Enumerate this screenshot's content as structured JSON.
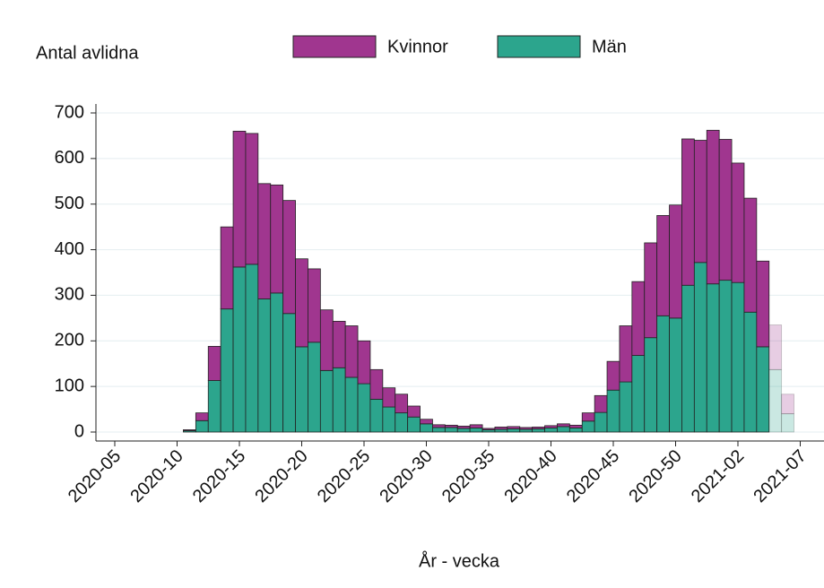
{
  "chart_data": {
    "type": "stacked_bar",
    "y_label": "Antal avlidna",
    "x_label": "År - vecka",
    "categories": [
      "2020-05",
      null,
      null,
      null,
      null,
      "2020-10",
      null,
      null,
      null,
      null,
      "2020-15",
      null,
      null,
      null,
      null,
      "2020-20",
      null,
      null,
      null,
      null,
      "2020-25",
      null,
      null,
      null,
      null,
      "2020-30",
      null,
      null,
      null,
      null,
      "2020-35",
      null,
      null,
      null,
      null,
      "2020-40",
      null,
      null,
      null,
      null,
      "2020-45",
      null,
      null,
      null,
      null,
      "2020-50",
      null,
      null,
      null,
      null,
      "2021-02",
      null,
      null,
      null,
      null,
      "2021-07"
    ],
    "series": [
      {
        "name": "Män",
        "color": "#2ca58d",
        "values": [
          null,
          null,
          null,
          null,
          null,
          null,
          3,
          25,
          113,
          270,
          362,
          368,
          292,
          305,
          260,
          187,
          197,
          135,
          141,
          120,
          106,
          72,
          55,
          42,
          33,
          18,
          10,
          10,
          8,
          9,
          5,
          6,
          7,
          6,
          7,
          9,
          12,
          9,
          24,
          43,
          92,
          110,
          168,
          207,
          255,
          250,
          322,
          372,
          325,
          333,
          328,
          263,
          187,
          137,
          40,
          null
        ]
      },
      {
        "name": "Kvinnor",
        "color": "#a0368f",
        "values": [
          null,
          null,
          null,
          null,
          null,
          null,
          2,
          17,
          75,
          180,
          298,
          287,
          253,
          237,
          248,
          193,
          161,
          133,
          102,
          113,
          94,
          65,
          42,
          41,
          24,
          10,
          6,
          5,
          5,
          7,
          3,
          5,
          5,
          4,
          4,
          5,
          6,
          6,
          18,
          37,
          63,
          123,
          162,
          208,
          220,
          248,
          321,
          268,
          337,
          309,
          262,
          250,
          188,
          98,
          43,
          null
        ]
      }
    ],
    "faded_last_n": 2,
    "ylim": [
      0,
      700
    ],
    "yticks": [
      0,
      100,
      200,
      300,
      400,
      500,
      600,
      700
    ],
    "grid": true,
    "legend": "top"
  }
}
